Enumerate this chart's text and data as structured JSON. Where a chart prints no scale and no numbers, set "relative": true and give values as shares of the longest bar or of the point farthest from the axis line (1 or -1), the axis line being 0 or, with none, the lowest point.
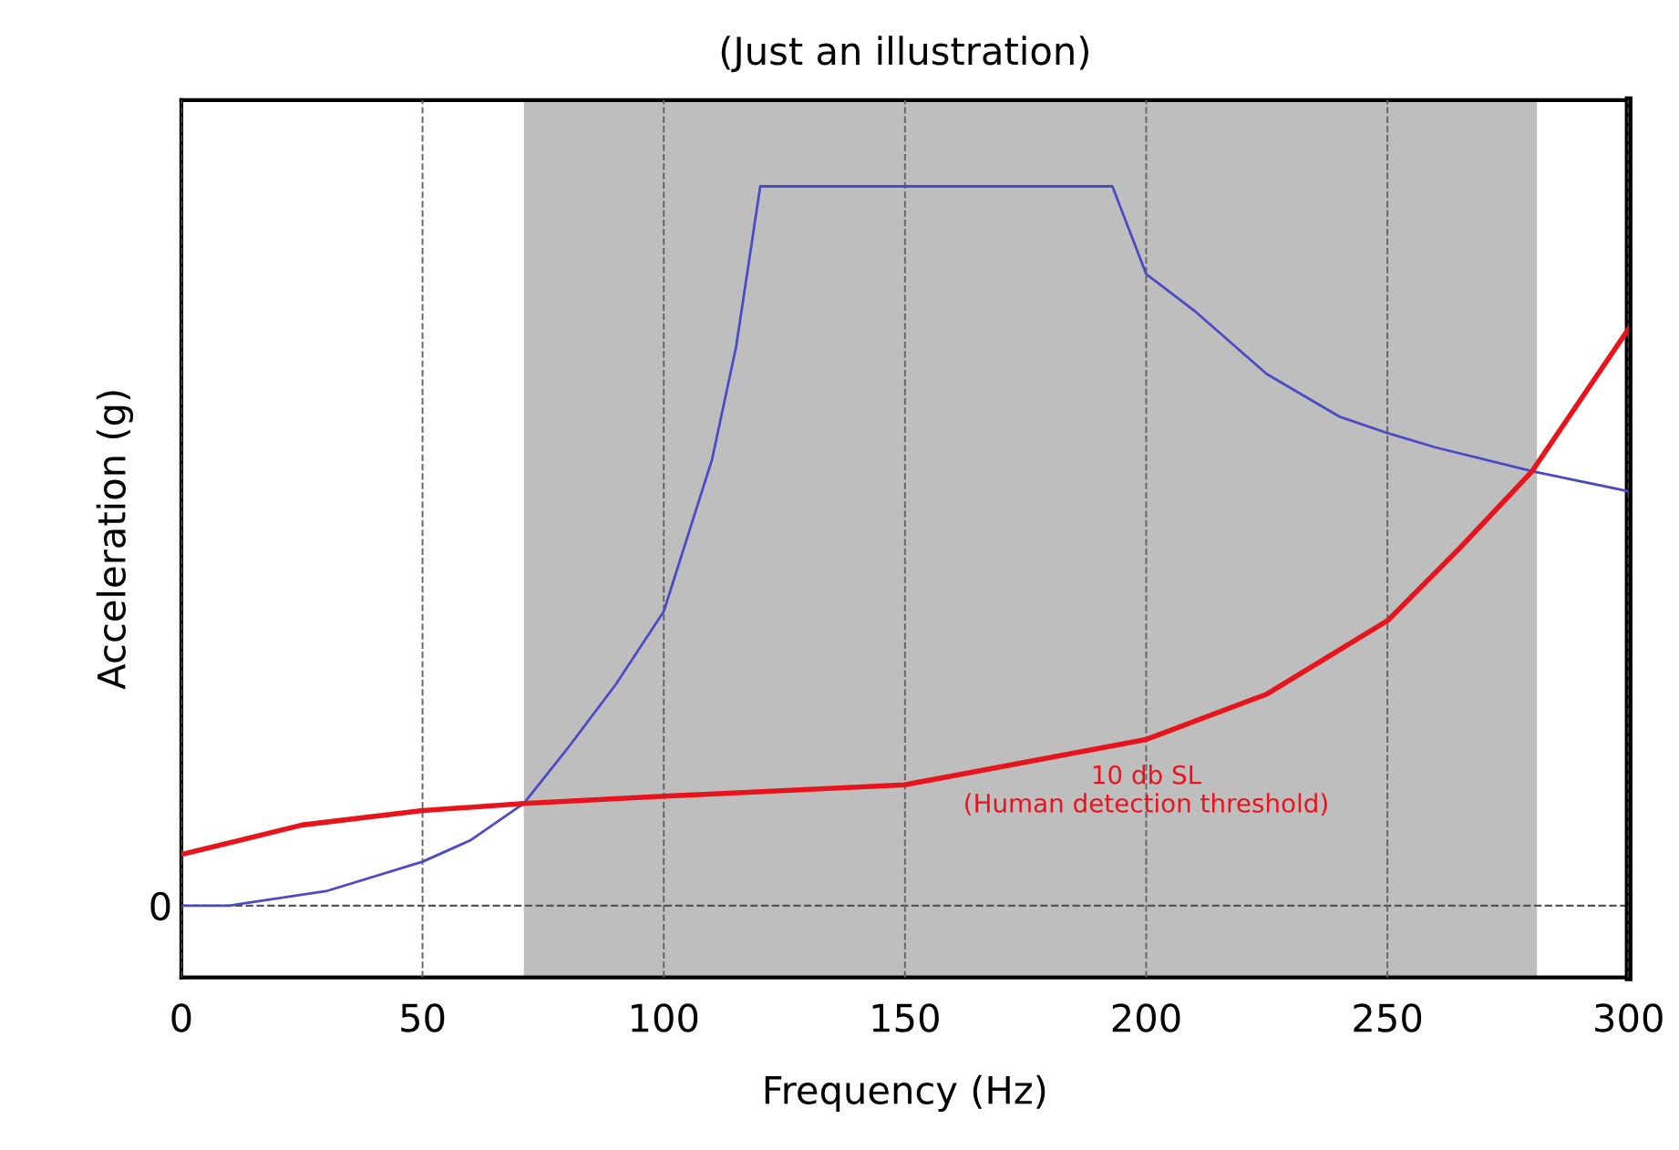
{
  "chart_data": {
    "type": "line",
    "title": "(Just an illustration)",
    "xlabel": "Frequency (Hz)",
    "ylabel": "Acceleration (g)",
    "relative": true,
    "xlim": [
      0,
      300
    ],
    "xticks": [
      0,
      50,
      100,
      150,
      200,
      250,
      300
    ],
    "grid": "x",
    "legend": false,
    "marker": "none",
    "line_style": "solid",
    "series": [
      {
        "color": "#4b4bc8",
        "x": [
          0,
          10,
          30,
          50,
          60,
          71,
          80,
          90,
          100,
          110,
          115,
          120,
          193,
          200,
          210,
          225,
          240,
          250,
          260,
          280,
          300
        ],
        "values": [
          0,
          0,
          0.02,
          0.061,
          0.091,
          0.142,
          0.218,
          0.307,
          0.409,
          0.62,
          0.777,
          1,
          1,
          0.878,
          0.827,
          0.739,
          0.68,
          0.657,
          0.637,
          0.604,
          0.576
        ]
      },
      {
        "name": "10 db SL\n(Human detection threshold)",
        "color": "#e8141c",
        "x": [
          0,
          25,
          50,
          71,
          100,
          150,
          200,
          225,
          250,
          265,
          280,
          300
        ],
        "values": [
          0.071,
          0.112,
          0.132,
          0.142,
          0.152,
          0.168,
          0.231,
          0.294,
          0.396,
          0.497,
          0.604,
          0.802
        ]
      }
    ],
    "bands": [
      {
        "axis": "x",
        "from": 71,
        "to": 281,
        "color": "#bebebe"
      }
    ],
    "ref_lines": [
      {
        "axis": "y",
        "value": 0,
        "label": "0",
        "color": "#555555",
        "line_style": "dashed"
      }
    ]
  }
}
